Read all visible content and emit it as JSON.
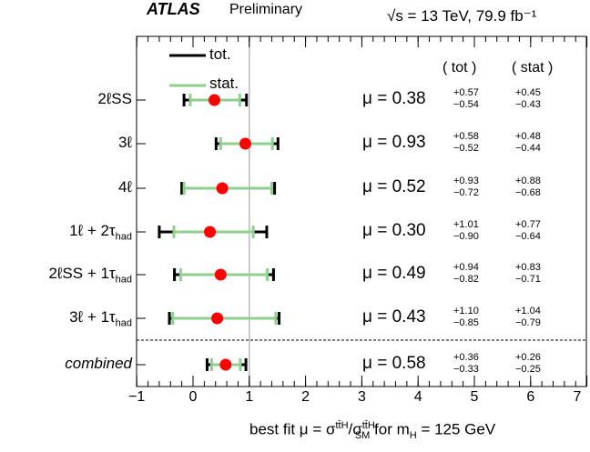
{
  "header": {
    "experiment": "ATLAS",
    "status": "Preliminary",
    "energy_lumi": "√s = 13 TeV, 79.9 fb⁻¹"
  },
  "legend": {
    "tot_label": "tot.",
    "stat_label": "stat."
  },
  "columns": {
    "tot_header": "( tot )",
    "stat_header": "( stat )"
  },
  "chart_data": {
    "type": "scatter",
    "title": "",
    "xlabel_parts": {
      "prefix": "best fit μ = σ",
      "num_sup": "tt̄H",
      "den": "/σ",
      "den_sup": "tt̄H",
      "den_sub": "SM",
      "mid": " for m",
      "mass_sub": "H",
      "suffix": " = 125 GeV"
    },
    "xlim": [
      -1,
      7
    ],
    "xticks": [
      "−1",
      "0",
      "1",
      "2",
      "3",
      "4",
      "5",
      "6",
      "7"
    ],
    "xtick_values": [
      -1,
      0,
      1,
      2,
      3,
      4,
      5,
      6,
      7
    ],
    "reference_line": 1,
    "categories": [
      {
        "label_main": "2ℓSS",
        "label_sub": "",
        "label_tail": "",
        "mu_text": "μ = 0.38",
        "mu": 0.38,
        "tot_up": 0.57,
        "tot_dn": 0.54,
        "stat_up": 0.45,
        "stat_dn": 0.43,
        "tot_up_text": "+0.57",
        "tot_dn_text": "−0.54",
        "stat_up_text": "+0.45",
        "stat_dn_text": "−0.43"
      },
      {
        "label_main": "3ℓ",
        "label_sub": "",
        "label_tail": "",
        "mu_text": "μ = 0.93",
        "mu": 0.93,
        "tot_up": 0.58,
        "tot_dn": 0.52,
        "stat_up": 0.48,
        "stat_dn": 0.44,
        "tot_up_text": "+0.58",
        "tot_dn_text": "−0.52",
        "stat_up_text": "+0.48",
        "stat_dn_text": "−0.44"
      },
      {
        "label_main": "4ℓ",
        "label_sub": "",
        "label_tail": "",
        "mu_text": "μ = 0.52",
        "mu": 0.52,
        "tot_up": 0.93,
        "tot_dn": 0.72,
        "stat_up": 0.88,
        "stat_dn": 0.68,
        "tot_up_text": "+0.93",
        "tot_dn_text": "−0.72",
        "stat_up_text": "+0.88",
        "stat_dn_text": "−0.68"
      },
      {
        "label_main": "1ℓ + 2τ",
        "label_sub": "had",
        "label_tail": "",
        "mu_text": "μ = 0.30",
        "mu": 0.3,
        "tot_up": 1.01,
        "tot_dn": 0.9,
        "stat_up": 0.77,
        "stat_dn": 0.64,
        "tot_up_text": "+1.01",
        "tot_dn_text": "−0.90",
        "stat_up_text": "+0.77",
        "stat_dn_text": "−0.64"
      },
      {
        "label_main": "2ℓSS + 1τ",
        "label_sub": "had",
        "label_tail": "",
        "mu_text": "μ = 0.49",
        "mu": 0.49,
        "tot_up": 0.94,
        "tot_dn": 0.82,
        "stat_up": 0.83,
        "stat_dn": 0.71,
        "tot_up_text": "+0.94",
        "tot_dn_text": "−0.82",
        "stat_up_text": "+0.83",
        "stat_dn_text": "−0.71"
      },
      {
        "label_main": "3ℓ + 1τ",
        "label_sub": "had",
        "label_tail": "",
        "mu_text": "μ = 0.43",
        "mu": 0.43,
        "tot_up": 1.1,
        "tot_dn": 0.85,
        "stat_up": 1.04,
        "stat_dn": 0.79,
        "tot_up_text": "+1.10",
        "tot_dn_text": "−0.85",
        "stat_up_text": "+1.04",
        "stat_dn_text": "−0.79"
      },
      {
        "label_main": "combined",
        "label_sub": "",
        "label_tail": "",
        "mu_text": "μ = 0.58",
        "mu": 0.58,
        "tot_up": 0.36,
        "tot_dn": 0.33,
        "stat_up": 0.26,
        "stat_dn": 0.25,
        "tot_up_text": "+0.36",
        "tot_dn_text": "−0.33",
        "stat_up_text": "+0.26",
        "stat_dn_text": "−0.25"
      }
    ],
    "colors": {
      "tot": "#000000",
      "stat": "#8fcf8f",
      "point": "#ff0000",
      "ref_line": "#bbbbbb"
    }
  }
}
